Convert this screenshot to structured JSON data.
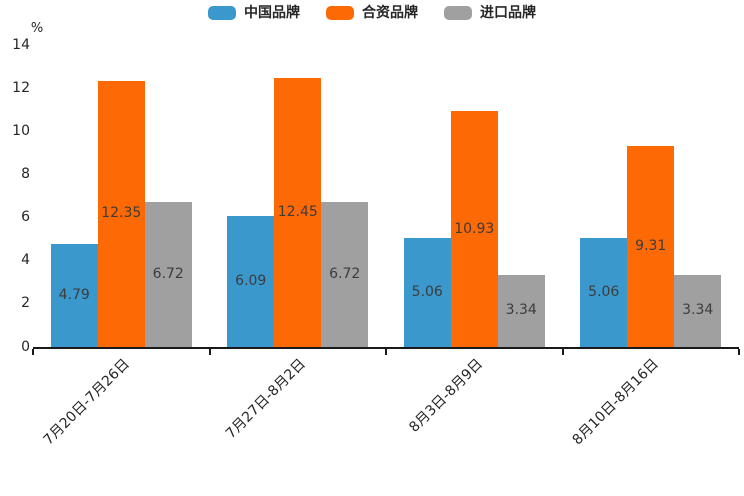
{
  "chart_data": {
    "type": "bar",
    "title": "",
    "unit_label": "%",
    "legend_position": "top",
    "grid": false,
    "value_labels": "inside-center",
    "categories": [
      "7月20日-7月26日",
      "7月27日-8月2日",
      "8月3日-8月9日",
      "8月10日-8月16日"
    ],
    "series": [
      {
        "name": "中国品牌",
        "color": "#3A98CC",
        "values": [
          4.79,
          6.09,
          5.06,
          5.06
        ]
      },
      {
        "name": "合资品牌",
        "color": "#FD6905",
        "values": [
          12.35,
          12.45,
          10.93,
          9.31
        ]
      },
      {
        "name": "进口品牌",
        "color": "#A0A0A0",
        "values": [
          6.72,
          6.72,
          3.34,
          3.34
        ]
      }
    ],
    "y_axis": {
      "min": 0,
      "max": 14,
      "tick_step": 2,
      "ticks": [
        0,
        2,
        4,
        6,
        8,
        10,
        12,
        14
      ]
    },
    "colors": {
      "axis": "#1a1a1a",
      "value_label_text": "#3c3c3c",
      "tick_text": "#262626"
    }
  }
}
